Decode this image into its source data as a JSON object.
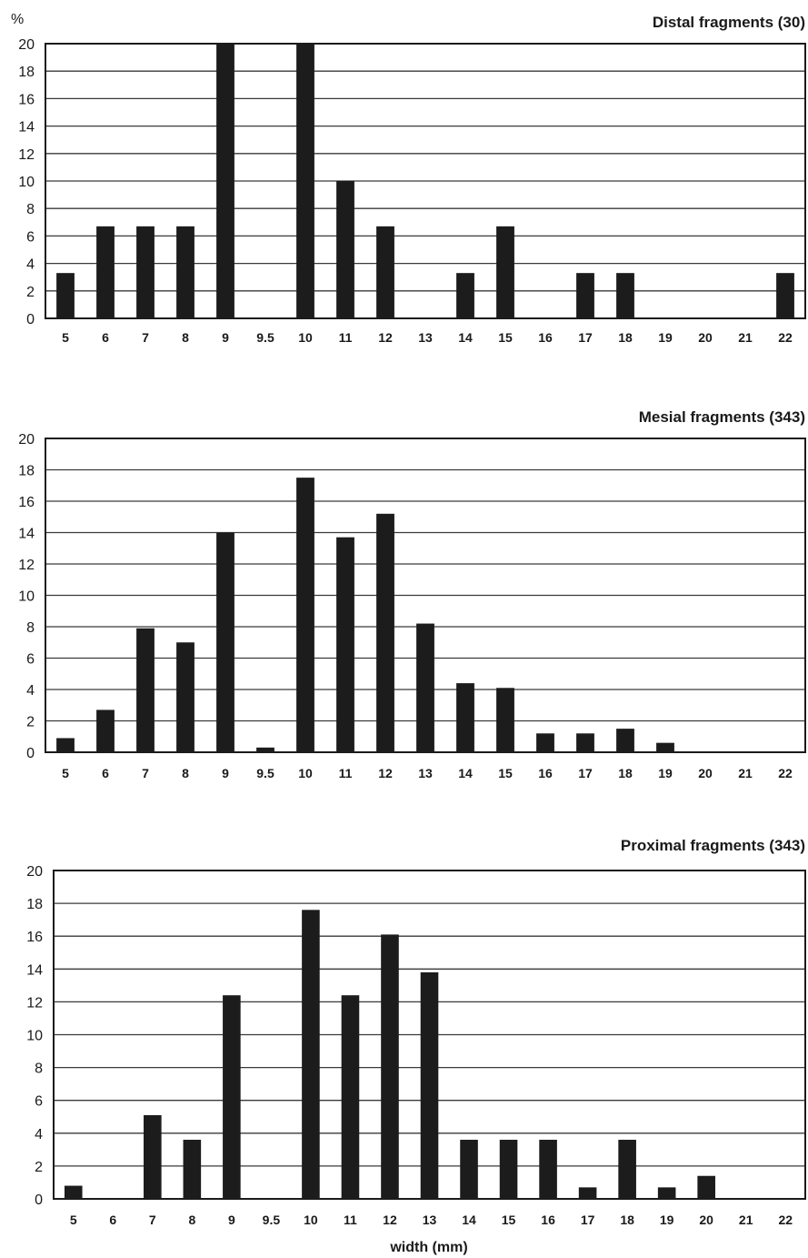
{
  "y_unit": "%",
  "x_axis_title": "width (mm)",
  "chart_data": [
    {
      "type": "bar",
      "title": "Distal fragments (30)",
      "ylim": [
        0,
        20
      ],
      "yticks": [
        0,
        2,
        4,
        6,
        8,
        10,
        12,
        14,
        16,
        18,
        20
      ],
      "grid": true,
      "categories": [
        "5",
        "6",
        "7",
        "8",
        "9",
        "9.5",
        "10",
        "11",
        "12",
        "13",
        "14",
        "15",
        "16",
        "17",
        "18",
        "19",
        "20",
        "21",
        "22"
      ],
      "values": [
        3.3,
        6.7,
        6.7,
        6.7,
        20,
        0,
        20,
        10,
        6.7,
        0,
        3.3,
        6.7,
        0,
        3.3,
        3.3,
        0,
        0,
        0,
        3.3
      ]
    },
    {
      "type": "bar",
      "title": "Mesial fragments (343)",
      "ylim": [
        0,
        20
      ],
      "yticks": [
        0,
        2,
        4,
        6,
        8,
        10,
        12,
        14,
        16,
        18,
        20
      ],
      "grid": true,
      "categories": [
        "5",
        "6",
        "7",
        "8",
        "9",
        "9.5",
        "10",
        "11",
        "12",
        "13",
        "14",
        "15",
        "16",
        "17",
        "18",
        "19",
        "20",
        "21",
        "22"
      ],
      "values": [
        0.9,
        2.7,
        7.9,
        7.0,
        14.0,
        0.3,
        17.5,
        13.7,
        15.2,
        8.2,
        4.4,
        4.1,
        1.2,
        1.2,
        1.5,
        0.6,
        0,
        0,
        0
      ]
    },
    {
      "type": "bar",
      "title": "Proximal fragments (343)",
      "ylim": [
        0,
        20
      ],
      "yticks": [
        0,
        2,
        4,
        6,
        8,
        10,
        12,
        14,
        16,
        18,
        20
      ],
      "grid": true,
      "categories": [
        "5",
        "6",
        "7",
        "8",
        "9",
        "9.5",
        "10",
        "11",
        "12",
        "13",
        "14",
        "15",
        "16",
        "17",
        "18",
        "19",
        "20",
        "21",
        "22"
      ],
      "values": [
        0.8,
        0,
        5.1,
        3.6,
        12.4,
        0,
        17.6,
        12.4,
        16.1,
        13.8,
        3.6,
        3.6,
        3.6,
        0.7,
        3.6,
        0.7,
        1.4,
        0,
        0
      ]
    }
  ]
}
